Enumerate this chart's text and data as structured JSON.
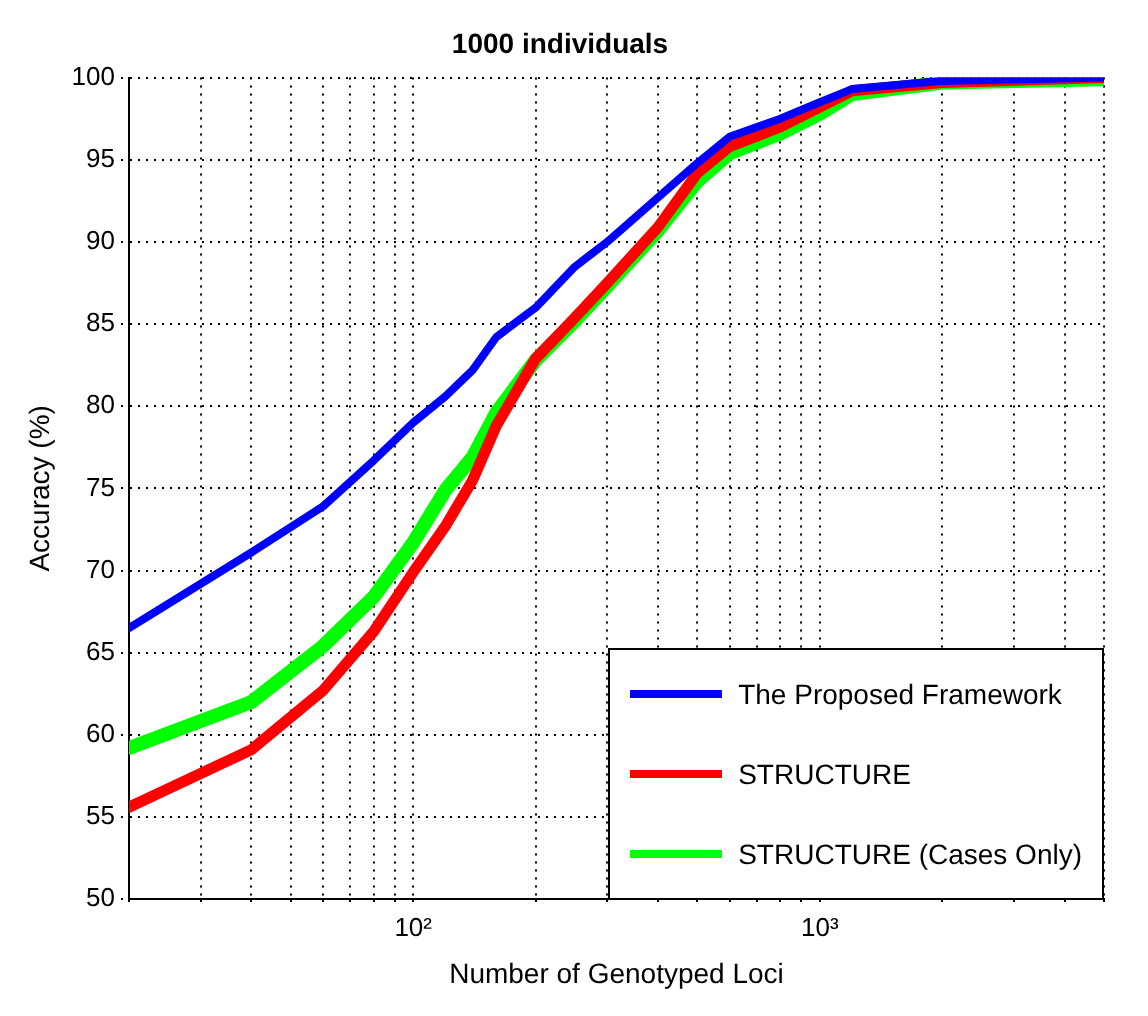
{
  "chart_data": {
    "type": "line",
    "title": "1000 individuals",
    "xlabel": "Number of Genotyped Loci",
    "ylabel": "Accuracy (%)",
    "log": "x",
    "xlim": [
      20,
      5000
    ],
    "ylim": [
      50,
      100
    ],
    "xticks": [
      {
        "value": 20,
        "label": null
      },
      {
        "value": 30,
        "label": null
      },
      {
        "value": 40,
        "label": null
      },
      {
        "value": 50,
        "label": null
      },
      {
        "value": 60,
        "label": null
      },
      {
        "value": 70,
        "label": null
      },
      {
        "value": 80,
        "label": null
      },
      {
        "value": 90,
        "label": null
      },
      {
        "value": 100,
        "label": "10²"
      },
      {
        "value": 200,
        "label": null
      },
      {
        "value": 300,
        "label": null
      },
      {
        "value": 400,
        "label": null
      },
      {
        "value": 500,
        "label": null
      },
      {
        "value": 600,
        "label": null
      },
      {
        "value": 700,
        "label": null
      },
      {
        "value": 800,
        "label": null
      },
      {
        "value": 900,
        "label": null
      },
      {
        "value": 1000,
        "label": "10³"
      },
      {
        "value": 2000,
        "label": null
      },
      {
        "value": 3000,
        "label": null
      },
      {
        "value": 4000,
        "label": null
      },
      {
        "value": 5000,
        "label": null
      }
    ],
    "yticks": [
      50,
      55,
      60,
      65,
      70,
      75,
      80,
      85,
      90,
      95,
      100
    ],
    "grid": true,
    "legend": "bottom right",
    "line_style": "dotted",
    "marker": "none",
    "x": [
      20,
      40,
      60,
      80,
      100,
      120,
      140,
      160,
      200,
      250,
      300,
      400,
      500,
      600,
      800,
      1000,
      1200,
      2000,
      5000
    ],
    "series": [
      {
        "name": "The Proposed Framework",
        "color": "#0000ff",
        "line_style": "solid",
        "values": [
          66.5,
          71.1,
          73.9,
          76.7,
          79.0,
          80.6,
          82.2,
          84.2,
          86.0,
          88.5,
          90.0,
          92.7,
          94.8,
          96.4,
          97.5,
          98.5,
          99.3,
          99.8,
          100
        ]
      },
      {
        "name": "STRUCTURE",
        "color": "#ff0000",
        "line_style": "solid",
        "values": [
          55.6,
          59.1,
          62.7,
          66.3,
          69.9,
          72.7,
          75.5,
          78.8,
          82.9,
          85.4,
          87.5,
          90.9,
          94.2,
          95.8,
          97.0,
          98.2,
          99.2,
          99.7,
          100
        ]
      },
      {
        "name": "STRUCTURE (Cases Only)",
        "color": "#00ff00",
        "line_style": "solid",
        "values": [
          59.2,
          62.0,
          65.4,
          68.4,
          71.7,
          74.9,
          76.9,
          79.6,
          82.8,
          85.2,
          87.3,
          90.7,
          93.7,
          95.4,
          96.6,
          97.8,
          99.0,
          99.7,
          99.9
        ]
      }
    ]
  }
}
